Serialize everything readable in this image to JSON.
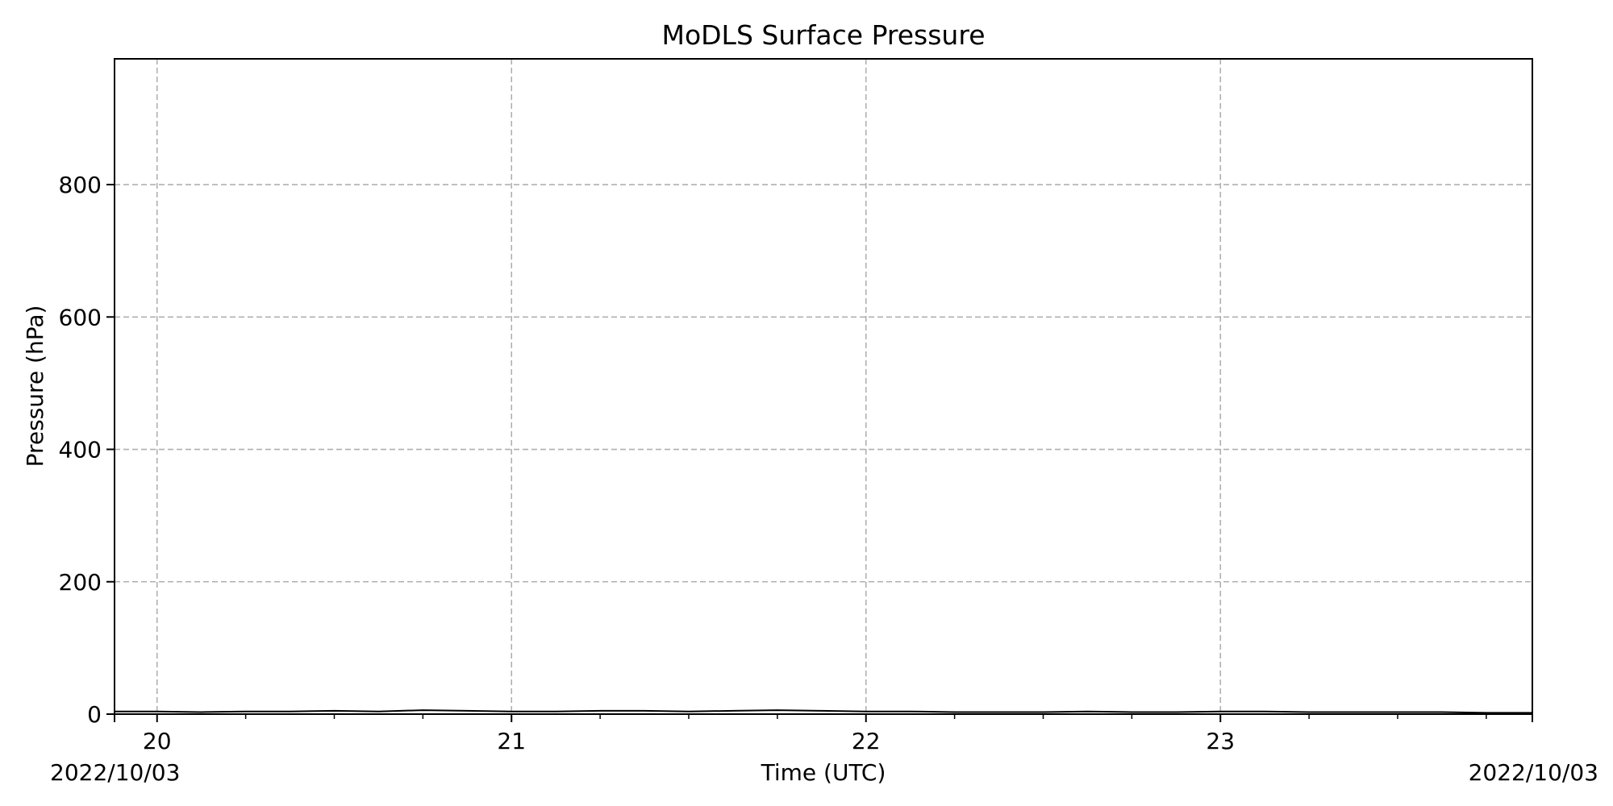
{
  "chart_data": {
    "type": "line",
    "title": "MoDLS Surface Pressure",
    "xlabel": "Time (UTC)",
    "ylabel": "Pressure (hPa)",
    "xlim": [
      19.88,
      23.88
    ],
    "ylim": [
      0,
      990
    ],
    "x_ticks": [
      20,
      21,
      22,
      23
    ],
    "x_tick_labels": [
      "20",
      "21",
      "22",
      "23"
    ],
    "x_minor_ticks": [
      20.25,
      20.5,
      20.75,
      21.25,
      21.5,
      21.75,
      22.25,
      22.5,
      22.75,
      23.25,
      23.5,
      23.75
    ],
    "y_ticks": [
      0,
      200,
      400,
      600,
      800
    ],
    "y_tick_labels": [
      "0",
      "200",
      "400",
      "600",
      "800"
    ],
    "date_label_left": "2022/10/03",
    "date_label_right": "2022/10/03",
    "grid": true,
    "series": [
      {
        "color": "#000000",
        "x": [
          19.88,
          20.0,
          20.125,
          20.25,
          20.375,
          20.5,
          20.625,
          20.75,
          20.875,
          21.0,
          21.125,
          21.25,
          21.375,
          21.5,
          21.625,
          21.75,
          21.875,
          22.0,
          22.125,
          22.25,
          22.375,
          22.5,
          22.625,
          22.75,
          22.875,
          23.0,
          23.125,
          23.25,
          23.375,
          23.5,
          23.625,
          23.75,
          23.88
        ],
        "y": [
          4,
          4,
          3,
          4,
          4,
          5,
          4,
          6,
          5,
          4,
          4,
          5,
          5,
          4,
          5,
          6,
          5,
          4,
          4,
          3,
          3,
          3,
          4,
          3,
          3,
          4,
          4,
          3,
          3,
          3,
          3,
          2,
          2
        ]
      }
    ]
  }
}
